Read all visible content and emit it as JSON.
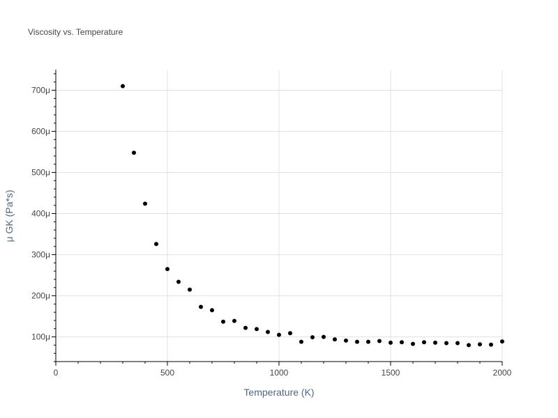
{
  "colors": {
    "text": "#444444",
    "axis_label": "#506784",
    "grid": "#e1e1e1",
    "axis_line": "#000000",
    "marker": "#000000",
    "background": "#ffffff"
  },
  "chart_data": {
    "type": "scatter",
    "title": "Viscosity vs. Temperature",
    "xlabel": "Temperature (K)",
    "ylabel": "μ GK (Pa*s)",
    "xlim": [
      0,
      2000
    ],
    "ylim": [
      4e-05,
      0.00075
    ],
    "x_ticks": [
      0,
      500,
      1000,
      1500,
      2000
    ],
    "x_tick_labels": [
      "0",
      "500",
      "1000",
      "1500",
      "2000"
    ],
    "y_ticks": [
      0.0001,
      0.0002,
      0.0003,
      0.0004,
      0.0005,
      0.0006,
      0.0007
    ],
    "y_tick_labels": [
      "100μ",
      "200μ",
      "300μ",
      "400μ",
      "500μ",
      "600μ",
      "700μ"
    ],
    "grid": true,
    "legend": "none",
    "series": [
      {
        "name": "μ GK",
        "marker": "circle",
        "x": [
          300,
          350,
          400,
          450,
          500,
          550,
          600,
          650,
          700,
          750,
          800,
          850,
          900,
          950,
          1000,
          1050,
          1100,
          1150,
          1200,
          1250,
          1300,
          1350,
          1400,
          1450,
          1500,
          1550,
          1600,
          1650,
          1700,
          1750,
          1800,
          1850,
          1900,
          1950,
          2000
        ],
        "y": [
          0.00071,
          0.000548,
          0.000424,
          0.000326,
          0.000265,
          0.000234,
          0.000215,
          0.000173,
          0.000165,
          0.000137,
          0.000139,
          0.000122,
          0.000119,
          0.000112,
          0.000105,
          0.000109,
          8.8e-05,
          9.9e-05,
          0.0001,
          9.4e-05,
          9.1e-05,
          8.8e-05,
          8.8e-05,
          9e-05,
          8.6e-05,
          8.7e-05,
          8.3e-05,
          8.7e-05,
          8.6e-05,
          8.5e-05,
          8.5e-05,
          8e-05,
          8.2e-05,
          8.1e-05,
          8.9e-05
        ]
      }
    ]
  }
}
